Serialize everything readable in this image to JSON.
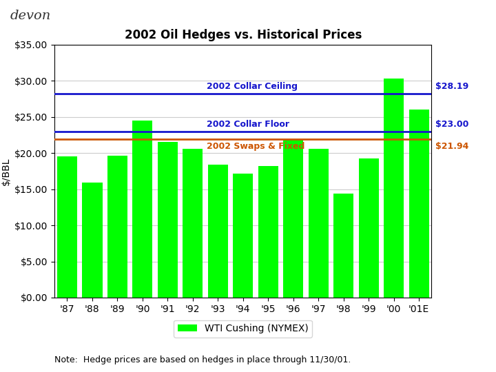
{
  "chart_data": {
    "type": "bar",
    "title": "2002 Oil Hedges vs. Historical Prices",
    "ylabel": "$/BBL",
    "categories": [
      "'87",
      "'88",
      "'89",
      "'90",
      "'91",
      "'92",
      "'93",
      "'94",
      "'95",
      "'96",
      "'97",
      "'98",
      "'99",
      "'00",
      "'01E"
    ],
    "series": [
      {
        "name": "WTI Cushing (NYMEX)",
        "color": "#00FF00",
        "values": [
          19.5,
          15.9,
          19.6,
          24.5,
          21.5,
          20.6,
          18.4,
          17.2,
          18.2,
          21.9,
          20.6,
          14.4,
          19.3,
          30.3,
          26.0
        ]
      }
    ],
    "reference_lines": [
      {
        "text": "2002 Collar Ceiling",
        "value": 28.19,
        "value_label": "$28.19",
        "color": "#1515CC"
      },
      {
        "text": "2002 Collar Floor",
        "value": 23.0,
        "value_label": "$23.00",
        "color": "#1515CC"
      },
      {
        "text": "2002 Swaps & Fixed",
        "value": 21.94,
        "value_label": "$21.94",
        "color": "#CC5500"
      }
    ],
    "ylim": [
      0,
      35
    ],
    "yticks": [
      {
        "value": 0,
        "label": "$0.00"
      },
      {
        "value": 5,
        "label": "$5.00"
      },
      {
        "value": 10,
        "label": "$10.00"
      },
      {
        "value": 15,
        "label": "$15.00"
      },
      {
        "value": 20,
        "label": "$20.00"
      },
      {
        "value": 25,
        "label": "$25.00"
      },
      {
        "value": 30,
        "label": "$30.00"
      },
      {
        "value": 35,
        "label": "$35.00"
      }
    ],
    "grid": true,
    "legend": "below",
    "annotations": [
      "devon",
      "Note:  Hedge prices are based on hedges in place through 11/30/01."
    ]
  }
}
